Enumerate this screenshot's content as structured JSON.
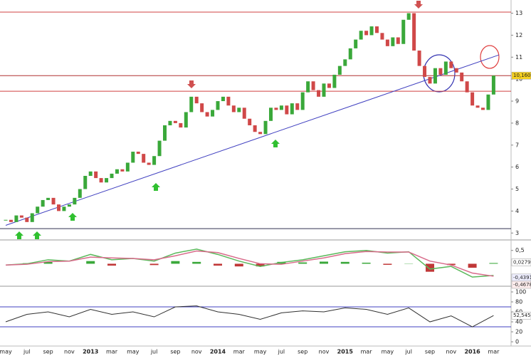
{
  "chart_data": [
    {
      "type": "candlestick",
      "categories": [
        "may",
        null,
        null,
        null,
        "jul",
        null,
        null,
        null,
        "sep",
        null,
        null,
        null,
        "nov",
        null,
        null,
        null,
        "2013",
        null,
        null,
        null,
        "mar",
        null,
        null,
        null,
        "may",
        null,
        null,
        null,
        "jul",
        null,
        null,
        null,
        "sep",
        null,
        null,
        null,
        "nov",
        null,
        null,
        null,
        "2014",
        null,
        null,
        null,
        "mar",
        null,
        null,
        null,
        "may",
        null,
        null,
        null,
        "jul",
        null,
        null,
        null,
        "sep",
        null,
        null,
        null,
        "nov",
        null,
        null,
        null,
        "2015",
        null,
        null,
        null,
        "mar",
        null,
        null,
        null,
        "may",
        null,
        null,
        null,
        "jul",
        null,
        null,
        null,
        "sep",
        null,
        null,
        null,
        "nov",
        null,
        null,
        null,
        "2016",
        null,
        null,
        null,
        "mar"
      ],
      "close": [
        3.6,
        3.5,
        3.8,
        3.7,
        3.5,
        3.9,
        4.2,
        4.5,
        4.6,
        4.3,
        4.0,
        4.2,
        4.3,
        4.6,
        5.0,
        5.6,
        5.8,
        5.5,
        5.3,
        5.5,
        5.7,
        5.9,
        5.8,
        6.2,
        6.7,
        6.6,
        6.2,
        6.1,
        6.5,
        7.2,
        7.9,
        8.1,
        8.0,
        7.8,
        8.5,
        9.2,
        8.9,
        8.5,
        8.3,
        8.6,
        9.0,
        9.2,
        8.8,
        8.5,
        8.7,
        8.2,
        7.9,
        7.6,
        7.5,
        8.1,
        8.7,
        8.6,
        8.8,
        8.4,
        8.9,
        8.6,
        9.4,
        9.9,
        9.5,
        9.2,
        9.8,
        9.6,
        10.2,
        10.6,
        10.9,
        11.4,
        11.8,
        12.2,
        12.0,
        12.4,
        12.1,
        11.8,
        11.5,
        11.9,
        11.6,
        12.7,
        13.0,
        11.3,
        10.6,
        10.1,
        9.8,
        10.5,
        10.2,
        10.8,
        10.5,
        10.3,
        9.9,
        9.4,
        8.8,
        8.7,
        8.6,
        9.3,
        10.16
      ],
      "value_labels": {
        "92": "10,160"
      },
      "up_color": "#3aa83a",
      "down_color": "#d04848",
      "ylim": [
        2.75,
        13.6
      ],
      "yticks": [
        3,
        4,
        5,
        6,
        7,
        8,
        9,
        10,
        11,
        12,
        13
      ],
      "levels": [
        {
          "value": 13.05,
          "color": "#d04040"
        },
        {
          "value": 10.16,
          "color": "#b03030"
        },
        {
          "value": 9.45,
          "color": "#d04040"
        },
        {
          "value": 3.2,
          "color": "#303050"
        }
      ],
      "trendline": {
        "from": [
          0,
          3.35
        ],
        "to": [
          93,
          11.1
        ],
        "color": "#4040c0"
      }
    },
    {
      "type": "macd",
      "macd": [
        -0.05,
        0.0,
        0.15,
        0.1,
        0.35,
        0.15,
        0.2,
        0.1,
        0.4,
        0.55,
        0.35,
        0.1,
        -0.1,
        0.05,
        0.15,
        0.3,
        0.45,
        0.5,
        0.4,
        0.45,
        -0.2,
        -0.1,
        -0.5,
        -0.4391
      ],
      "signal": [
        -0.05,
        -0.02,
        0.08,
        0.1,
        0.25,
        0.22,
        0.2,
        0.15,
        0.3,
        0.48,
        0.42,
        0.2,
        0.0,
        -0.02,
        0.1,
        0.22,
        0.38,
        0.46,
        0.44,
        0.44,
        0.1,
        -0.05,
        -0.35,
        -0.4678
      ],
      "histogram": [
        0,
        0.02,
        0.07,
        0,
        0.1,
        -0.07,
        0,
        -0.05,
        0.1,
        0.07,
        -0.07,
        -0.1,
        -0.1,
        0.07,
        0.05,
        0.08,
        0.07,
        0.04,
        -0.04,
        0.01,
        -0.3,
        -0.05,
        -0.15,
        0.0279
      ],
      "value_labels": {
        "histogram": "0,0279",
        "macd": "-0,4391",
        "signal": "-0,4678"
      },
      "macd_color": "#5ab85a",
      "signal_color": "#d86a8a",
      "ylim": [
        -0.79,
        0.84
      ],
      "yticks": [
        {
          "value": 0.5,
          "label": "0,5"
        }
      ]
    },
    {
      "type": "rsi",
      "values": [
        40,
        55,
        60,
        50,
        65,
        55,
        60,
        50,
        70,
        72,
        60,
        55,
        45,
        58,
        62,
        60,
        68,
        65,
        55,
        68,
        40,
        52,
        30,
        52.545
      ],
      "value_labels": {
        "23": "52,545"
      },
      "color": "#303030",
      "ylim": [
        -8.5,
        110
      ],
      "yticks": [
        0,
        20,
        40,
        60,
        80,
        100
      ],
      "levels": [
        70,
        30
      ]
    }
  ]
}
